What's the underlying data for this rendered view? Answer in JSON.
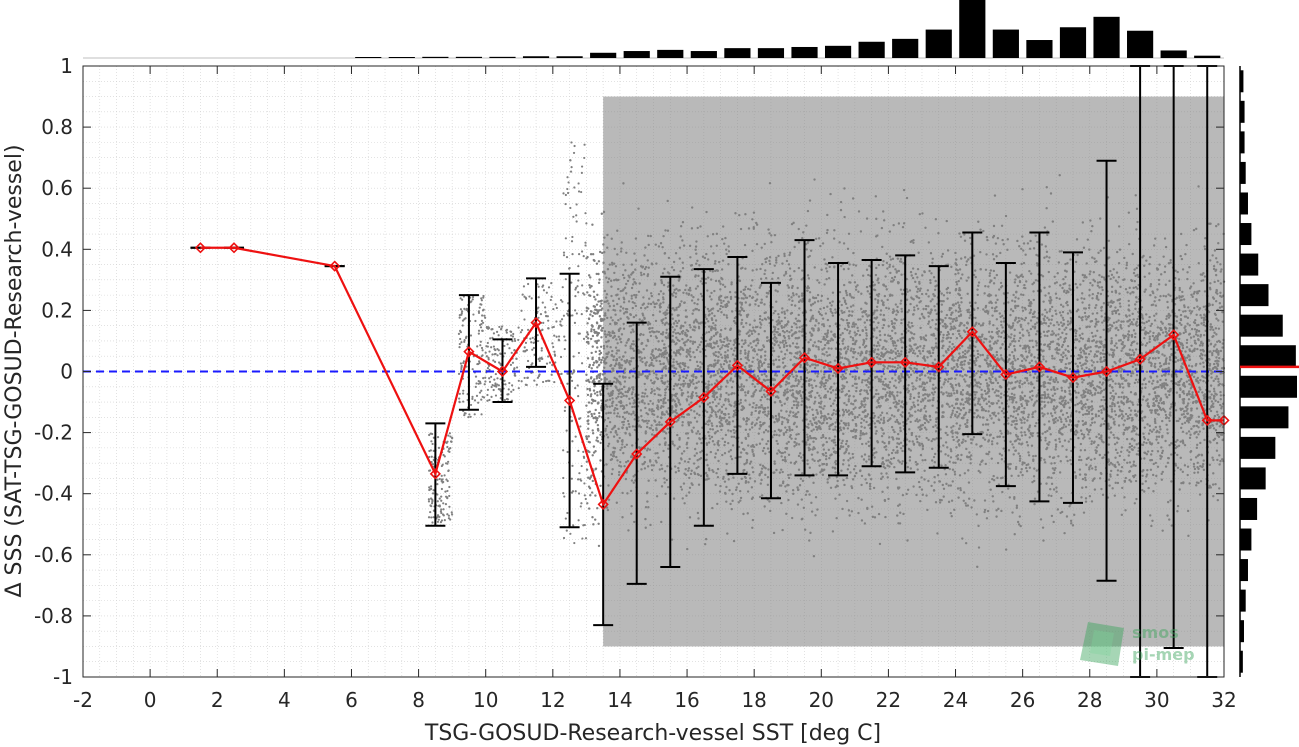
{
  "chart_data": {
    "type": "scatter",
    "xlabel": "TSG-GOSUD-Research-vessel SST [deg C]",
    "ylabel": "Δ SSS (SAT-TSG-GOSUD-Research-vessel)",
    "xlim": [
      -2,
      32
    ],
    "ylim": [
      -1,
      1
    ],
    "xticks": [
      "-2",
      "0",
      "2",
      "4",
      "6",
      "8",
      "10",
      "12",
      "14",
      "16",
      "18",
      "20",
      "22",
      "24",
      "26",
      "28",
      "30",
      "32"
    ],
    "yticks": [
      "1",
      "0.8",
      "0.6",
      "0.4",
      "0.2",
      "0",
      "-0.2",
      "-0.4",
      "-0.6",
      "-0.8",
      "-1"
    ],
    "grid": "minor dotted",
    "reference_line": {
      "y": 0,
      "style": "dashed",
      "color": "#1a1aff"
    },
    "series": [
      {
        "kind": "binned-mean",
        "color": "#ee1111",
        "x": [
          1.5,
          2.5,
          5.5,
          8.5,
          9.5,
          10.5,
          11.5,
          12.5,
          13.5,
          14.5,
          15.5,
          16.5,
          17.5,
          18.5,
          19.5,
          20.5,
          21.5,
          22.5,
          23.5,
          24.5,
          25.5,
          26.5,
          27.5,
          28.5,
          29.5,
          30.5,
          31.5,
          32.0
        ],
        "y": [
          0.405,
          0.405,
          0.345,
          -0.335,
          0.065,
          0.0,
          0.16,
          -0.095,
          -0.435,
          -0.27,
          -0.165,
          -0.085,
          0.02,
          -0.065,
          0.045,
          0.01,
          0.03,
          0.03,
          0.015,
          0.13,
          -0.01,
          0.015,
          -0.02,
          0.0,
          0.04,
          0.12,
          -0.16,
          -0.16
        ]
      },
      {
        "kind": "std-errorbars",
        "color": "#000000",
        "bars": [
          {
            "x": 1.5,
            "low": 0.405,
            "high": 0.405
          },
          {
            "x": 2.5,
            "low": 0.405,
            "high": 0.405
          },
          {
            "x": 5.5,
            "low": 0.345,
            "high": 0.345
          },
          {
            "x": 8.5,
            "low": -0.505,
            "high": -0.17
          },
          {
            "x": 9.5,
            "low": -0.125,
            "high": 0.25
          },
          {
            "x": 10.5,
            "low": -0.1,
            "high": 0.105
          },
          {
            "x": 11.5,
            "low": 0.015,
            "high": 0.305
          },
          {
            "x": 12.5,
            "low": -0.51,
            "high": 0.32
          },
          {
            "x": 13.5,
            "low": -0.83,
            "high": -0.04
          },
          {
            "x": 14.5,
            "low": -0.695,
            "high": 0.16
          },
          {
            "x": 15.5,
            "low": -0.64,
            "high": 0.31
          },
          {
            "x": 16.5,
            "low": -0.505,
            "high": 0.335
          },
          {
            "x": 17.5,
            "low": -0.335,
            "high": 0.375
          },
          {
            "x": 18.5,
            "low": -0.415,
            "high": 0.29
          },
          {
            "x": 19.5,
            "low": -0.34,
            "high": 0.43
          },
          {
            "x": 20.5,
            "low": -0.34,
            "high": 0.355
          },
          {
            "x": 21.5,
            "low": -0.31,
            "high": 0.365
          },
          {
            "x": 22.5,
            "low": -0.33,
            "high": 0.38
          },
          {
            "x": 23.5,
            "low": -0.315,
            "high": 0.345
          },
          {
            "x": 24.5,
            "low": -0.205,
            "high": 0.455
          },
          {
            "x": 25.5,
            "low": -0.375,
            "high": 0.355
          },
          {
            "x": 26.5,
            "low": -0.425,
            "high": 0.455
          },
          {
            "x": 27.5,
            "low": -0.43,
            "high": 0.39
          },
          {
            "x": 28.5,
            "low": -0.685,
            "high": 0.69
          },
          {
            "x": 29.5,
            "low": -1.0,
            "high": 1.0
          },
          {
            "x": 30.5,
            "low": -0.905,
            "high": 1.0
          },
          {
            "x": 31.5,
            "low": -1.0,
            "high": 1.0
          }
        ]
      }
    ],
    "scatter_cloud": {
      "color": "#808080",
      "dense_region": {
        "x": [
          13,
          32
        ],
        "y": [
          -1,
          1
        ]
      },
      "sparse_clusters": [
        {
          "x": [
            8.3,
            9.0
          ],
          "y": [
            -0.5,
            -0.2
          ]
        },
        {
          "x": [
            9.2,
            10.0
          ],
          "y": [
            -0.15,
            0.25
          ]
        },
        {
          "x": [
            10.0,
            11.0
          ],
          "y": [
            -0.1,
            0.15
          ]
        },
        {
          "x": [
            11.0,
            12.3
          ],
          "y": [
            -0.05,
            0.3
          ]
        },
        {
          "x": [
            12.3,
            13.0
          ],
          "y": [
            -0.6,
            0.75
          ]
        }
      ]
    },
    "top_histogram": {
      "x": [
        6.5,
        7.5,
        8.5,
        9.5,
        10.5,
        11.5,
        12.5,
        13.5,
        14.5,
        15.5,
        16.5,
        17.5,
        18.5,
        19.5,
        20.5,
        21.5,
        22.5,
        23.5,
        24.5,
        25.5,
        26.5,
        27.5,
        28.5,
        29.5,
        30.5,
        31.5
      ],
      "values": [
        0.01,
        0.01,
        0.02,
        0.02,
        0.02,
        0.03,
        0.03,
        0.09,
        0.12,
        0.14,
        0.12,
        0.17,
        0.17,
        0.19,
        0.21,
        0.28,
        0.33,
        0.49,
        1.0,
        0.49,
        0.31,
        0.53,
        0.71,
        0.47,
        0.13,
        0.04
      ]
    },
    "right_histogram": {
      "y": [
        0.95,
        0.85,
        0.75,
        0.65,
        0.55,
        0.45,
        0.35,
        0.25,
        0.15,
        0.05,
        -0.05,
        -0.15,
        -0.25,
        -0.35,
        -0.45,
        -0.55,
        -0.65,
        -0.75,
        -0.85,
        -0.95
      ],
      "values": [
        0.06,
        0.08,
        0.08,
        0.1,
        0.14,
        0.2,
        0.32,
        0.5,
        0.75,
        0.98,
        1.0,
        0.85,
        0.62,
        0.45,
        0.3,
        0.2,
        0.14,
        0.1,
        0.07,
        0.05
      ],
      "mean_marker": {
        "y": 0.015,
        "color": "#ee1111"
      }
    },
    "watermark": {
      "line1": "smos",
      "line2": "pi-mep"
    }
  }
}
